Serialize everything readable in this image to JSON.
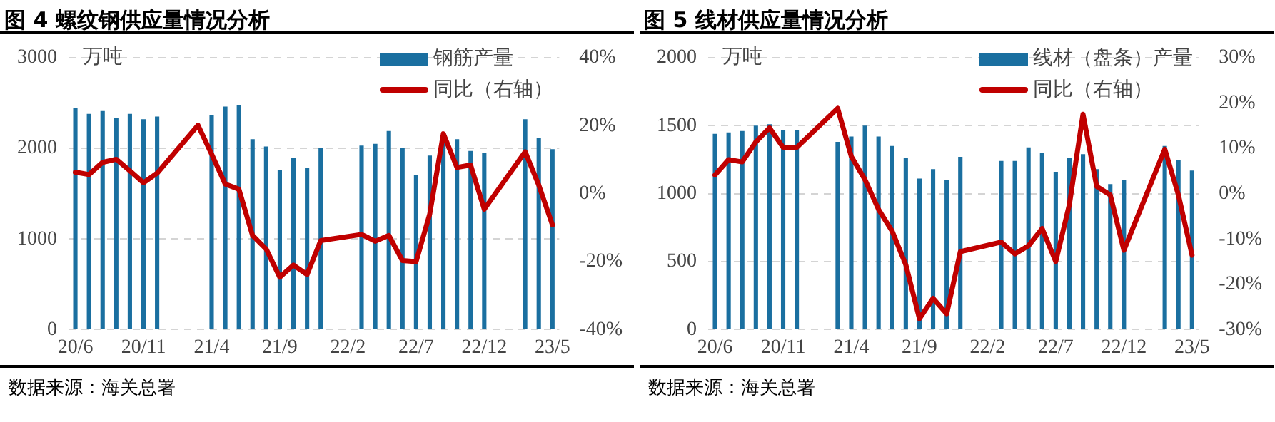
{
  "chart_data": [
    {
      "type": "bar",
      "title": "图 4 螺纹钢供应量情况分析",
      "ylabel": "万吨",
      "categories": [
        "20/6",
        null,
        null,
        null,
        null,
        "20/11",
        null,
        null,
        null,
        null,
        "21/4",
        null,
        null,
        null,
        null,
        "21/9",
        null,
        null,
        null,
        null,
        "22/2",
        null,
        null,
        null,
        null,
        "22/7",
        null,
        null,
        null,
        null,
        "22/12",
        null,
        null,
        null,
        null,
        "23/5"
      ],
      "series": [
        {
          "name": "钢筋产量",
          "color": "#1a6fa0",
          "values": [
            2440,
            2380,
            2410,
            2330,
            2380,
            2320,
            2350,
            null,
            null,
            null,
            2370,
            2460,
            2480,
            2100,
            2020,
            1760,
            1890,
            1780,
            2000,
            null,
            null,
            2030,
            2050,
            2190,
            2000,
            1710,
            1920,
            2100,
            2100,
            1970,
            1950,
            null,
            null,
            2320,
            2110,
            1990
          ]
        },
        {
          "name": "同比（右轴）",
          "type": "line",
          "axis": "y2",
          "color": "#c00000",
          "values": [
            6.3,
            5.6,
            9.2,
            10.1,
            6.7,
            3.2,
            6.0,
            null,
            null,
            20.1,
            11.6,
            2.8,
            1.3,
            -12.3,
            -16.3,
            -24.6,
            -21.0,
            -23.8,
            -13.8,
            null,
            null,
            -12.0,
            -14.0,
            -12.3,
            -19.7,
            -20.0,
            -6.0,
            17.6,
            7.7,
            8.4,
            -4.6,
            null,
            null,
            12.3,
            2.5,
            -9.2
          ]
        }
      ],
      "ylim": [
        0,
        3000
      ],
      "yticks": [
        0,
        1000,
        2000,
        3000
      ],
      "y2lim": [
        -40,
        40
      ],
      "y2ticks": [
        {
          "value": -40,
          "label": "-40%"
        },
        {
          "value": -20,
          "label": "-20%"
        },
        {
          "value": 0,
          "label": "0%"
        },
        {
          "value": 20,
          "label": "20%"
        },
        {
          "value": 40,
          "label": "40%"
        }
      ],
      "grid": "y",
      "legend": "top right",
      "marker": "none",
      "annotations": [
        "数据来源：海关总署"
      ]
    },
    {
      "type": "bar",
      "title": "图 5 线材供应量情况分析",
      "ylabel": "万吨",
      "categories": [
        "20/6",
        null,
        null,
        null,
        null,
        "20/11",
        null,
        null,
        null,
        null,
        "21/4",
        null,
        null,
        null,
        null,
        "21/9",
        null,
        null,
        null,
        null,
        "22/2",
        null,
        null,
        null,
        null,
        "22/7",
        null,
        null,
        null,
        null,
        "22/12",
        null,
        null,
        null,
        null,
        "23/5"
      ],
      "series": [
        {
          "name": "线材（盘条）产量",
          "color": "#1a6fa0",
          "values": [
            1440,
            1450,
            1460,
            1500,
            1510,
            1470,
            1470,
            null,
            null,
            1380,
            1420,
            1500,
            1420,
            1350,
            1260,
            1110,
            1180,
            1100,
            1270,
            null,
            null,
            1240,
            1240,
            1340,
            1300,
            1160,
            1260,
            1290,
            1180,
            1070,
            1100,
            null,
            null,
            1350,
            1250,
            1170
          ]
        },
        {
          "name": "同比（右轴）",
          "type": "line",
          "axis": "y2",
          "color": "#c00000",
          "values": [
            4.1,
            7.5,
            7.0,
            11.4,
            14.5,
            10.2,
            10.2,
            null,
            null,
            18.8,
            8.2,
            3.1,
            -3.5,
            -8.3,
            -15.7,
            -27.6,
            -23.1,
            -26.5,
            -12.8,
            null,
            null,
            -10.7,
            -13.3,
            -11.5,
            -7.7,
            -15.0,
            -2.4,
            17.5,
            1.6,
            -0.3,
            -12.5,
            null,
            null,
            9.8,
            -0.3,
            -13.6
          ]
        }
      ],
      "ylim": [
        0,
        2000
      ],
      "yticks": [
        0,
        500,
        1000,
        1500,
        2000
      ],
      "y2lim": [
        -30,
        30
      ],
      "y2ticks": [
        {
          "value": -30,
          "label": "-30%"
        },
        {
          "value": -20,
          "label": "-20%"
        },
        {
          "value": -10,
          "label": "-10%"
        },
        {
          "value": 0,
          "label": "0%"
        },
        {
          "value": 10,
          "label": "10%"
        },
        {
          "value": 20,
          "label": "20%"
        },
        {
          "value": 30,
          "label": "30%"
        }
      ],
      "grid": "y",
      "legend": "top right",
      "marker": "none",
      "annotations": [
        "数据来源：海关总署"
      ]
    }
  ]
}
